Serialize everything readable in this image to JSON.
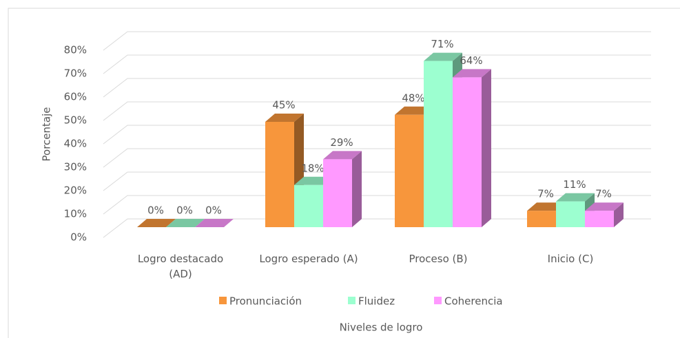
{
  "chart_data": {
    "type": "bar3d",
    "categories": [
      "Logro destacado (AD)",
      "Logro esperado (A)",
      "Proceso (B)",
      "Inicio (C)"
    ],
    "series": [
      {
        "name": "Pronunciación",
        "color": "#f7963c",
        "values": [
          0,
          45,
          48,
          7
        ],
        "value_labels": [
          "0%",
          "45%",
          "48%",
          "7%"
        ]
      },
      {
        "name": "Fluidez",
        "color": "#9cffd0",
        "values": [
          0,
          18,
          71,
          11
        ],
        "value_labels": [
          "0%",
          "18%",
          "71%",
          "11%"
        ]
      },
      {
        "name": "Coherencia",
        "color": "#ff99ff",
        "values": [
          0,
          29,
          64,
          7
        ],
        "value_labels": [
          "0%",
          "29%",
          "64%",
          "7%"
        ]
      }
    ],
    "ylim": [
      0,
      80
    ],
    "yticks": [
      {
        "value": 0,
        "label": "0%"
      },
      {
        "value": 10,
        "label": "10%"
      },
      {
        "value": 20,
        "label": "20%"
      },
      {
        "value": 30,
        "label": "30%"
      },
      {
        "value": 40,
        "label": "40%"
      },
      {
        "value": 50,
        "label": "50%"
      },
      {
        "value": 60,
        "label": "60%"
      },
      {
        "value": 70,
        "label": "70%"
      },
      {
        "value": 80,
        "label": "80%"
      }
    ],
    "ylabel": "Porcentaje",
    "xlabel": "Niveles de logro",
    "grid": true,
    "legend": "bottom"
  }
}
